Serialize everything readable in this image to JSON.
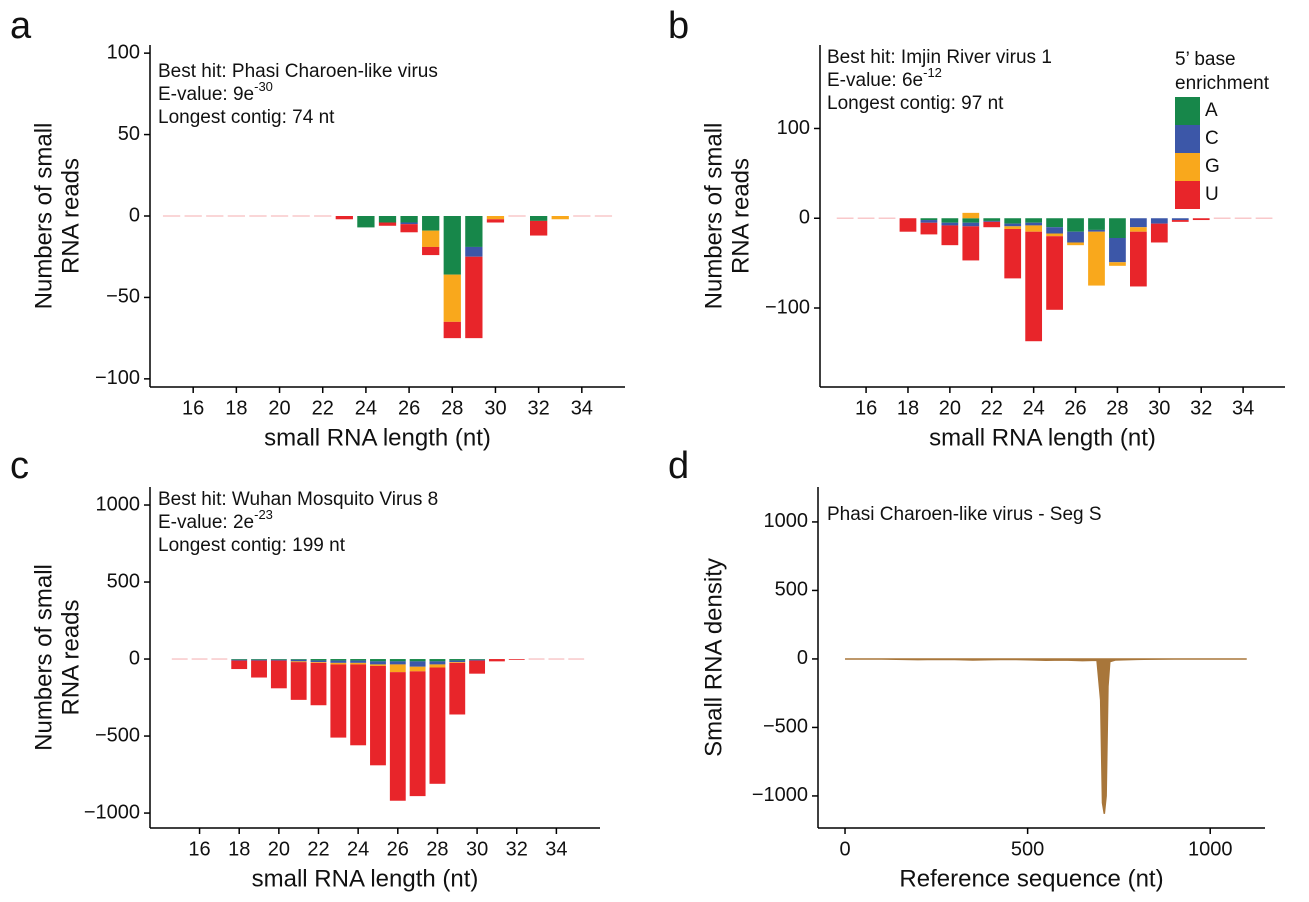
{
  "chart_data": [
    {
      "type": "bar",
      "panel_label": "a",
      "annotations": [
        "Best hit: Phasi Charoen-like virus",
        {
          "text": "E-value:  9e",
          "superscript": "-30"
        },
        "Longest contig: 74 nt"
      ],
      "xlabel": "small RNA length (nt)",
      "ylabel": [
        "Numbers of small",
        "RNA reads"
      ],
      "x": [
        15,
        16,
        17,
        18,
        19,
        20,
        21,
        22,
        23,
        24,
        25,
        26,
        27,
        28,
        29,
        30,
        31,
        32,
        33,
        34,
        35
      ],
      "series": [
        {
          "name": "A",
          "color": "#17874a",
          "values": [
            0,
            0,
            0,
            0,
            0,
            0,
            0,
            0,
            0,
            -7,
            -4,
            -4,
            -9,
            -36,
            -19,
            0,
            0,
            -3,
            0,
            0,
            0
          ]
        },
        {
          "name": "C",
          "color": "#3c57a8",
          "values": [
            0,
            0,
            0,
            0,
            0,
            0,
            0,
            0,
            0,
            0,
            0,
            -1,
            0,
            0,
            -6,
            0,
            0,
            0,
            0,
            0,
            0
          ]
        },
        {
          "name": "G",
          "color": "#f9a81c",
          "values": [
            0,
            0,
            0,
            0,
            0,
            0,
            0,
            0,
            0,
            0,
            0,
            0,
            -10,
            -29,
            0,
            -2,
            0,
            0,
            -2,
            0,
            0
          ]
        },
        {
          "name": "U",
          "color": "#e8252a",
          "values": [
            0,
            0,
            0,
            0,
            0,
            0,
            0,
            0,
            -2,
            0,
            -2,
            -5,
            -5,
            -10,
            -50,
            -2,
            0,
            -9,
            0,
            0,
            0
          ]
        }
      ],
      "xlim": [
        14,
        36
      ],
      "xticks": [
        16,
        18,
        20,
        22,
        24,
        26,
        28,
        30,
        32,
        34
      ],
      "ylim": [
        -105,
        105
      ],
      "yticks": [
        {
          "value": -100,
          "label": "−100"
        },
        {
          "value": -50,
          "label": "−50"
        },
        0,
        50,
        100
      ],
      "legend": false
    },
    {
      "type": "bar",
      "panel_label": "b",
      "annotations": [
        "Best hit: Imjin River virus 1",
        {
          "text": "E-value: 6e",
          "superscript": "-12"
        },
        "Longest contig: 97 nt"
      ],
      "xlabel": "small RNA length (nt)",
      "ylabel": [
        "Numbers of small",
        "RNA reads"
      ],
      "legend_title": [
        "5’ base",
        "enrichment"
      ],
      "x": [
        15,
        16,
        17,
        18,
        19,
        20,
        21,
        22,
        23,
        24,
        25,
        26,
        27,
        28,
        29,
        30,
        31,
        32,
        33,
        34,
        35
      ],
      "series": [
        {
          "name": "A",
          "color": "#17874a",
          "values": [
            0,
            0,
            0,
            0,
            -2,
            -5,
            -5,
            -3,
            -6,
            -5,
            -10,
            -15,
            -13,
            -22,
            0,
            0,
            0,
            0,
            0,
            0,
            0
          ]
        },
        {
          "name": "C",
          "color": "#3c57a8",
          "values": [
            0,
            0,
            0,
            0,
            -3,
            -3,
            -4,
            -1,
            -3,
            -3,
            -7,
            -12,
            -2,
            -27,
            -10,
            -6,
            -2,
            0,
            0,
            0,
            0
          ]
        },
        {
          "name": "G",
          "color": "#f9a81c",
          "values": [
            0,
            0,
            0,
            0,
            0,
            0,
            6,
            0,
            -3,
            -7,
            -3,
            -3,
            -60,
            -4,
            -5,
            0,
            0,
            0,
            0,
            0,
            0
          ]
        },
        {
          "name": "U",
          "color": "#e8252a",
          "values": [
            0,
            0,
            0,
            -15,
            -13,
            -22,
            -38,
            -6,
            -55,
            -122,
            -82,
            0,
            0,
            0,
            -61,
            -21,
            -2,
            -2,
            0,
            0,
            0
          ]
        }
      ],
      "xlim": [
        13.8,
        36
      ],
      "xticks": [
        16,
        18,
        20,
        22,
        24,
        26,
        28,
        30,
        32,
        34
      ],
      "ylim": [
        -188,
        193
      ],
      "yticks": [
        {
          "value": -100,
          "label": "−100"
        },
        0,
        100
      ],
      "legend": true
    },
    {
      "type": "bar",
      "panel_label": "c",
      "annotations": [
        "Best hit: Wuhan Mosquito Virus 8",
        {
          "text": "E-value:  2e",
          "superscript": "-23"
        },
        "Longest contig: 199 nt"
      ],
      "xlabel": "small RNA length (nt)",
      "ylabel": [
        "Numbers of small",
        "RNA reads"
      ],
      "x": [
        15,
        16,
        17,
        18,
        19,
        20,
        21,
        22,
        23,
        24,
        25,
        26,
        27,
        28,
        29,
        30,
        31,
        32,
        33,
        34,
        35
      ],
      "series": [
        {
          "name": "A",
          "color": "#17874a",
          "values": [
            0,
            0,
            0,
            -5,
            -5,
            -5,
            -5,
            -10,
            -10,
            -10,
            -15,
            -15,
            -15,
            -15,
            -10,
            -5,
            0,
            0,
            0,
            0,
            0
          ]
        },
        {
          "name": "C",
          "color": "#3c57a8",
          "values": [
            0,
            0,
            0,
            -5,
            -5,
            -5,
            -10,
            -10,
            -15,
            -15,
            -20,
            -20,
            -35,
            -20,
            -10,
            -5,
            0,
            0,
            0,
            0,
            0
          ]
        },
        {
          "name": "G",
          "color": "#f9a81c",
          "values": [
            0,
            0,
            0,
            0,
            0,
            0,
            -5,
            -5,
            -10,
            -10,
            -10,
            -50,
            -30,
            -20,
            -5,
            0,
            0,
            0,
            0,
            0,
            0
          ]
        },
        {
          "name": "U",
          "color": "#e8252a",
          "values": [
            0,
            0,
            0,
            -55,
            -110,
            -180,
            -245,
            -275,
            -475,
            -525,
            -645,
            -835,
            -810,
            -755,
            -335,
            -85,
            -15,
            -5,
            0,
            0,
            0
          ]
        }
      ],
      "xlim": [
        13.5,
        36.2
      ],
      "xticks": [
        16,
        18,
        20,
        22,
        24,
        26,
        28,
        30,
        32,
        34
      ],
      "ylim": [
        -1097,
        1117
      ],
      "yticks": [
        {
          "value": -1000,
          "label": "−1000"
        },
        {
          "value": -500,
          "label": "−500"
        },
        0,
        500,
        1000
      ],
      "legend": false
    },
    {
      "type": "area",
      "panel_label": "d",
      "title": "Phasi Charoen-like virus - Seg S",
      "xlabel": "Reference sequence (nt)",
      "ylabel": [
        "Small RNA density"
      ],
      "x": [
        0,
        100,
        200,
        250,
        300,
        350,
        400,
        450,
        500,
        550,
        600,
        650,
        690,
        700,
        705,
        710,
        715,
        720,
        725,
        740,
        800,
        900,
        1000,
        1100
      ],
      "values": [
        0,
        0,
        -5,
        -3,
        -4,
        -8,
        -5,
        -3,
        -6,
        -10,
        -8,
        -12,
        -10,
        -300,
        -1050,
        -1130,
        -1000,
        -200,
        -20,
        -8,
        -3,
        0,
        0,
        0
      ],
      "color": "#a8763a",
      "xlim": [
        -74,
        1150
      ],
      "xticks": [
        0,
        500,
        1000
      ],
      "ylim": [
        -1234,
        1255
      ],
      "yticks": [
        {
          "value": -1000,
          "label": "−1000"
        },
        {
          "value": -500,
          "label": "−500"
        },
        0,
        500,
        1000
      ],
      "legend": false
    }
  ]
}
